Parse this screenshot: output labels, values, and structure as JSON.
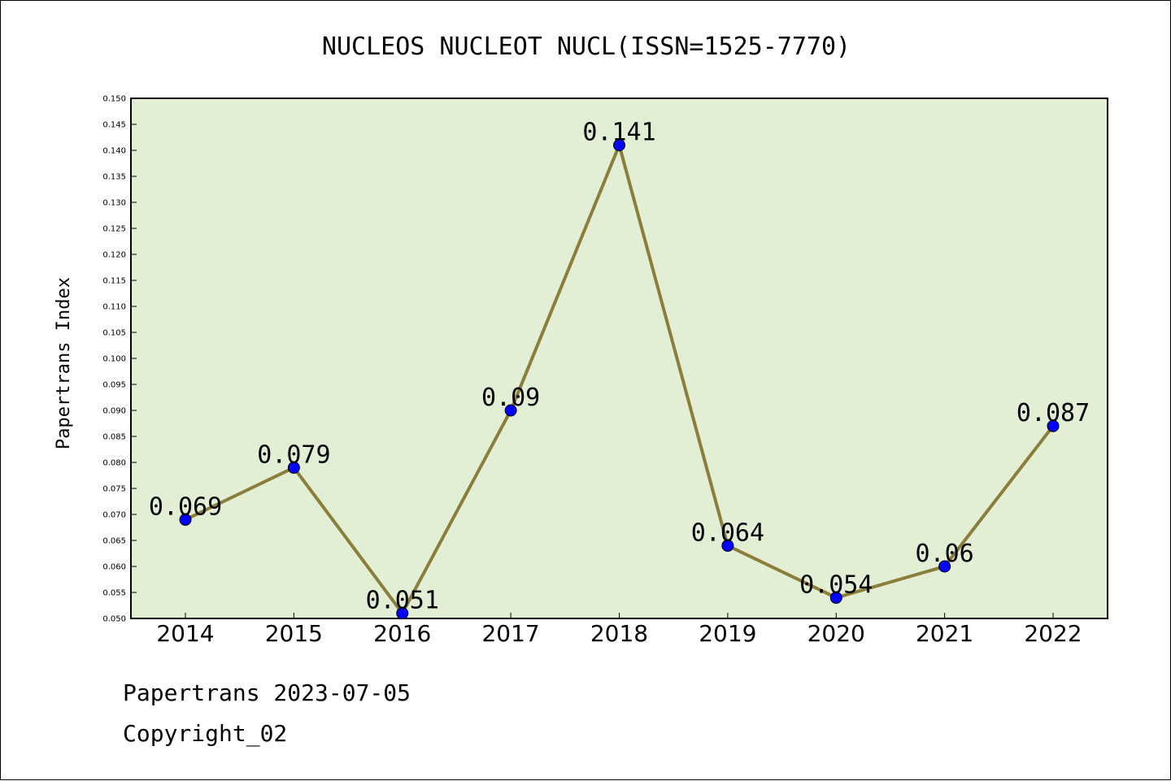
{
  "chart_data": {
    "type": "line",
    "title": "NUCLEOS NUCLEOT NUCL(ISSN=1525-7770)",
    "xlabel": "",
    "ylabel": "Papertrans Index",
    "categories": [
      "2014",
      "2015",
      "2016",
      "2017",
      "2018",
      "2019",
      "2020",
      "2021",
      "2022"
    ],
    "values": [
      0.069,
      0.079,
      0.051,
      0.09,
      0.141,
      0.064,
      0.054,
      0.06,
      0.087
    ],
    "data_labels": [
      "0.069",
      "0.079",
      "0.051",
      "0.09",
      "0.141",
      "0.064",
      "0.054",
      "0.06",
      "0.087"
    ],
    "ylim": [
      0.05,
      0.15
    ],
    "yticks": [
      "0.050",
      "0.055",
      "0.060",
      "0.065",
      "0.070",
      "0.075",
      "0.080",
      "0.085",
      "0.090",
      "0.095",
      "0.100",
      "0.105",
      "0.110",
      "0.115",
      "0.120",
      "0.125",
      "0.130",
      "0.135",
      "0.140",
      "0.145",
      "0.150"
    ],
    "grid": false,
    "legend": "none",
    "colors": {
      "plot_background": "#e2efd5",
      "line": "#8b7d3a",
      "marker": "#0000ff"
    }
  },
  "footer": {
    "line1": "Papertrans 2023-07-05",
    "line2": "Copyright_02"
  }
}
